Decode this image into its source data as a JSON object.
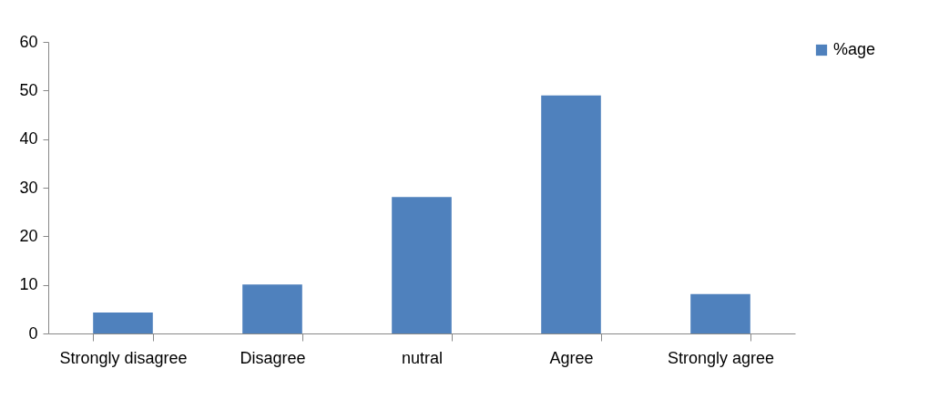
{
  "chart_data": {
    "type": "bar",
    "categories": [
      "Strongly disagree",
      "Disagree",
      "nutral",
      "Agree",
      "Strongly agree"
    ],
    "series": [
      {
        "name": "%age",
        "color": "#4f81bd",
        "values": [
          4.3,
          10.1,
          28.1,
          49.0,
          8.1
        ]
      }
    ],
    "ylim": [
      0,
      60
    ],
    "yticks": [
      0,
      10,
      20,
      30,
      40,
      50,
      60
    ],
    "grid": false,
    "legend": "right"
  }
}
